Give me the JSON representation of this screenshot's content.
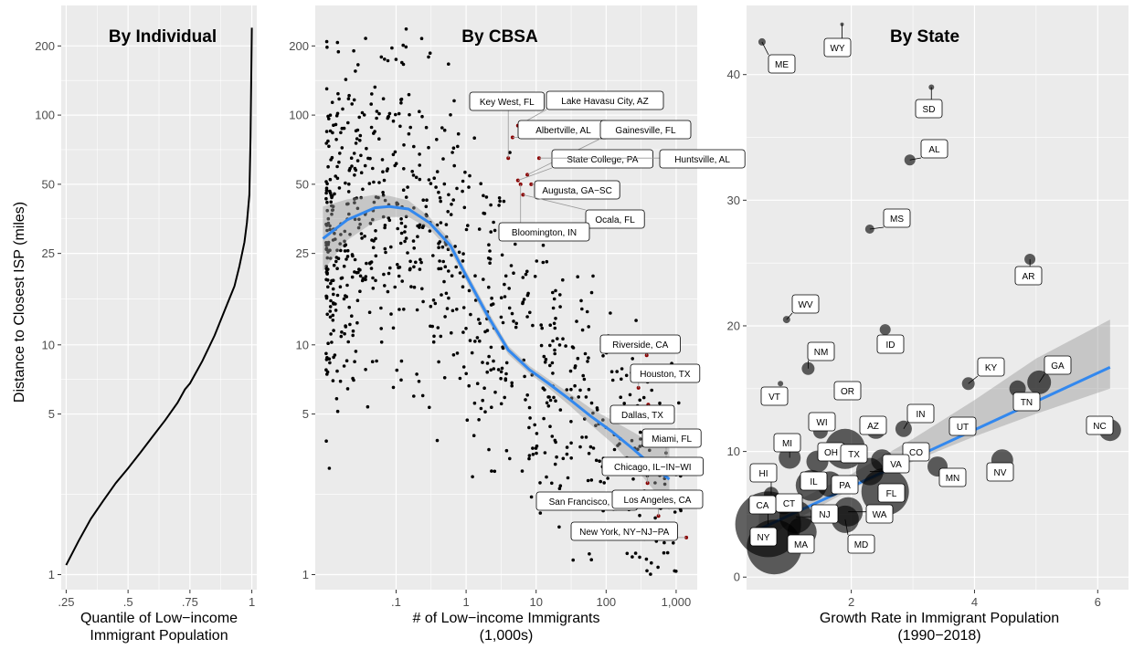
{
  "figure": {
    "ylabel": "Distance to Closest ISP (miles)"
  },
  "chart_data": [
    {
      "type": "line",
      "title": "By Individual",
      "xlabel": [
        "Quantile of Low−income",
        "Immigrant Population"
      ],
      "ylabel": "Distance to Closest ISP (miles)",
      "xlim": [
        0.23,
        1.02
      ],
      "ylim": [
        0.86,
        300
      ],
      "y_scale": "log",
      "x_ticks": [
        0.25,
        0.5,
        0.75,
        1
      ],
      "x_tick_labels": [
        ".25",
        ".5",
        ".75",
        "1"
      ],
      "y_ticks": [
        1,
        5,
        10,
        25,
        50,
        100,
        200
      ],
      "y_tick_labels": [
        "1",
        "5",
        "10",
        "25",
        "50",
        "100",
        "200"
      ],
      "series": [
        {
          "x": [
            0.25,
            0.3,
            0.35,
            0.4,
            0.45,
            0.5,
            0.55,
            0.6,
            0.65,
            0.7,
            0.73,
            0.75,
            0.8,
            0.85,
            0.9,
            0.93,
            0.95,
            0.97,
            0.98,
            0.99,
            0.995,
            1.0
          ],
          "y": [
            1.1,
            1.4,
            1.75,
            2.1,
            2.5,
            2.9,
            3.4,
            4.0,
            4.7,
            5.6,
            6.4,
            6.8,
            8.5,
            11,
            15,
            18,
            22,
            28,
            34,
            45,
            80,
            240
          ]
        }
      ],
      "grid": true
    },
    {
      "type": "scatter",
      "title": "By CBSA",
      "xlabel": [
        "# of Low−income Immigrants",
        "(1,000s)"
      ],
      "xlim": [
        0.007,
        2000
      ],
      "ylim": [
        0.86,
        300
      ],
      "x_scale": "log",
      "y_scale": "log",
      "x_ticks": [
        0.1,
        1,
        10,
        100,
        1000
      ],
      "x_tick_labels": [
        ".1",
        "1",
        "10",
        "100",
        "1,000"
      ],
      "y_ticks": [
        1,
        5,
        10,
        25,
        50,
        100,
        200
      ],
      "y_tick_labels": [
        "1",
        "5",
        "10",
        "25",
        "50",
        "100",
        "200"
      ],
      "smooth": {
        "x": [
          0.009,
          0.02,
          0.05,
          0.08,
          0.15,
          0.3,
          0.6,
          1,
          2,
          4,
          8,
          15,
          30,
          60,
          120,
          250,
          500,
          800
        ],
        "y": [
          29,
          35,
          39.5,
          40,
          39,
          34,
          27,
          20,
          13.5,
          9.5,
          7.8,
          6.8,
          5.8,
          4.9,
          4.2,
          3.5,
          2.9,
          2.6
        ],
        "lower": [
          21,
          28.5,
          34.5,
          36,
          36,
          32,
          25.5,
          19,
          12.8,
          9.1,
          7.5,
          6.5,
          5.45,
          4.5,
          3.75,
          2.95,
          2.3,
          1.9
        ],
        "upper": [
          40,
          43,
          45,
          44.5,
          42.5,
          36,
          28.5,
          21,
          14.2,
          9.9,
          8.1,
          7.1,
          6.15,
          5.3,
          4.7,
          4.15,
          3.65,
          3.6
        ]
      },
      "highlighted": [
        {
          "label": "Key West, FL",
          "x": 4.0,
          "y": 65
        },
        {
          "label": "Lake Havasu City, AZ",
          "x": 5.5,
          "y": 90
        },
        {
          "label": "Albertville, AL",
          "x": 4.6,
          "y": 80
        },
        {
          "label": "Gainesville, FL",
          "x": 7.5,
          "y": 55
        },
        {
          "label": "State College, PA",
          "x": 5.5,
          "y": 52
        },
        {
          "label": "Huntsville, AL",
          "x": 11,
          "y": 65
        },
        {
          "label": "Augusta, GA−SC",
          "x": 8.5,
          "y": 50
        },
        {
          "label": "Ocala, FL",
          "x": 6.5,
          "y": 45
        },
        {
          "label": "Bloomington, IN",
          "x": 6.0,
          "y": 50
        },
        {
          "label": "Riverside, CA",
          "x": 380,
          "y": 9
        },
        {
          "label": "Houston, TX",
          "x": 290,
          "y": 6.5
        },
        {
          "label": "Dallas, TX",
          "x": 400,
          "y": 5.5
        },
        {
          "label": "Miami, FL",
          "x": 720,
          "y": 3.1
        },
        {
          "label": "Chicago, IL−IN−WI",
          "x": 390,
          "y": 2.5
        },
        {
          "label": "San Francisco, CA",
          "x": 160,
          "y": 2.1
        },
        {
          "label": "Los Angeles, CA",
          "x": 560,
          "y": 1.8
        },
        {
          "label": "New York, NY−NJ−PA",
          "x": 1400,
          "y": 1.45
        }
      ],
      "grid": true
    },
    {
      "type": "scatter",
      "title": "By State",
      "xlabel": [
        "Growth Rate in Immigrant Population",
        "(1990−2018)"
      ],
      "xlim": [
        0.3,
        6.5
      ],
      "ylim": [
        -1,
        45.5
      ],
      "x_ticks": [
        2,
        4,
        6
      ],
      "x_tick_labels": [
        "2",
        "4",
        "6"
      ],
      "y_ticks": [
        0,
        10,
        20,
        30,
        40
      ],
      "y_tick_labels": [
        "0",
        "10",
        "20",
        "30",
        "40"
      ],
      "fit": {
        "x": [
          0.5,
          6.2
        ],
        "y": [
          3.8,
          16.7
        ],
        "band": [
          [
            0.5,
            2.6,
            5.0
          ],
          [
            1.0,
            4.3,
            5.8
          ],
          [
            2.0,
            7.0,
            8.2
          ],
          [
            3.0,
            9.2,
            11.0
          ],
          [
            4.0,
            11.2,
            14.1
          ],
          [
            5.0,
            13.0,
            17.4
          ],
          [
            6.2,
            15.0,
            20.5
          ]
        ]
      },
      "points": [
        {
          "label": "ME",
          "x": 0.55,
          "y": 42.6,
          "r": 4
        },
        {
          "label": "WY",
          "x": 1.85,
          "y": 44.0,
          "r": 2
        },
        {
          "label": "SD",
          "x": 3.3,
          "y": 39.0,
          "r": 3
        },
        {
          "label": "AL",
          "x": 2.95,
          "y": 33.2,
          "r": 6
        },
        {
          "label": "MS",
          "x": 2.3,
          "y": 27.7,
          "r": 5
        },
        {
          "label": "AR",
          "x": 4.9,
          "y": 25.3,
          "r": 6
        },
        {
          "label": "WV",
          "x": 0.95,
          "y": 20.5,
          "r": 4
        },
        {
          "label": "ID",
          "x": 2.55,
          "y": 19.7,
          "r": 6
        },
        {
          "label": "NM",
          "x": 1.3,
          "y": 16.6,
          "r": 7
        },
        {
          "label": "KY",
          "x": 3.9,
          "y": 15.4,
          "r": 7
        },
        {
          "label": "GA",
          "x": 5.05,
          "y": 15.5,
          "r": 13
        },
        {
          "label": "VT",
          "x": 0.85,
          "y": 15.4,
          "r": 3
        },
        {
          "label": "OR",
          "x": 2.0,
          "y": 14.8,
          "r": 8
        },
        {
          "label": "TN",
          "x": 4.7,
          "y": 15.0,
          "r": 9
        },
        {
          "label": "IN",
          "x": 2.85,
          "y": 11.8,
          "r": 9
        },
        {
          "label": "WI",
          "x": 1.5,
          "y": 11.6,
          "r": 8
        },
        {
          "label": "AZ",
          "x": 2.4,
          "y": 11.8,
          "r": 11
        },
        {
          "label": "UT",
          "x": 3.8,
          "y": 12.1,
          "r": 8
        },
        {
          "label": "NC",
          "x": 6.2,
          "y": 11.7,
          "r": 12
        },
        {
          "label": "MI",
          "x": 1.0,
          "y": 9.5,
          "r": 12
        },
        {
          "label": "OH",
          "x": 1.45,
          "y": 9.2,
          "r": 12
        },
        {
          "label": "TX",
          "x": 1.9,
          "y": 10.2,
          "r": 22
        },
        {
          "label": "CO",
          "x": 2.5,
          "y": 9.3,
          "r": 12
        },
        {
          "label": "VA",
          "x": 2.3,
          "y": 8.4,
          "r": 15
        },
        {
          "label": "MN",
          "x": 3.4,
          "y": 8.8,
          "r": 11
        },
        {
          "label": "NV",
          "x": 4.45,
          "y": 9.3,
          "r": 12
        },
        {
          "label": "HI",
          "x": 0.7,
          "y": 6.6,
          "r": 8
        },
        {
          "label": "IL",
          "x": 1.35,
          "y": 7.3,
          "r": 17
        },
        {
          "label": "PA",
          "x": 1.65,
          "y": 7.4,
          "r": 14
        },
        {
          "label": "FL",
          "x": 2.55,
          "y": 6.8,
          "r": 26
        },
        {
          "label": "CT",
          "x": 0.9,
          "y": 5.8,
          "r": 11
        },
        {
          "label": "CA",
          "x": 0.65,
          "y": 4.2,
          "r": 36
        },
        {
          "label": "NJ",
          "x": 1.1,
          "y": 4.8,
          "r": 18
        },
        {
          "label": "WA",
          "x": 1.95,
          "y": 5.2,
          "r": 16
        },
        {
          "label": "NY",
          "x": 0.75,
          "y": 2.4,
          "r": 30
        },
        {
          "label": "MA",
          "x": 1.2,
          "y": 3.6,
          "r": 16
        },
        {
          "label": "MD",
          "x": 1.9,
          "y": 4.6,
          "r": 15
        }
      ],
      "grid": true
    }
  ]
}
